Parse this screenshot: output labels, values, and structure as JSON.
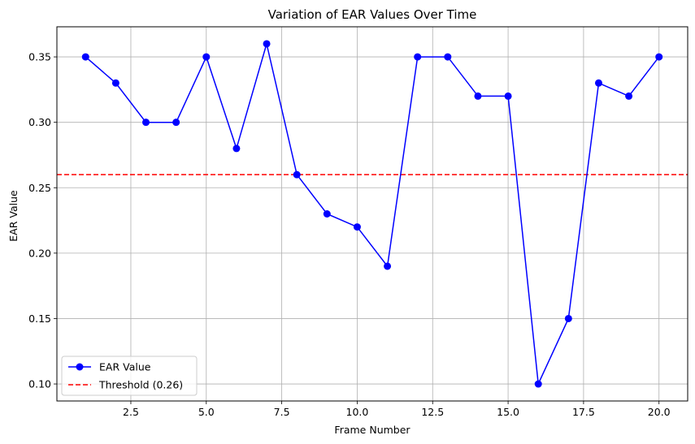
{
  "chart_data": {
    "type": "line",
    "title": "Variation of EAR Values Over Time",
    "xlabel": "Frame Number",
    "ylabel": "EAR Value",
    "xlim": [
      0.05,
      20.95
    ],
    "ylim": [
      0.087,
      0.373
    ],
    "xticks": [
      2.5,
      5.0,
      7.5,
      10.0,
      12.5,
      15.0,
      17.5,
      20.0
    ],
    "xtick_labels": [
      "2.5",
      "5.0",
      "7.5",
      "10.0",
      "12.5",
      "15.0",
      "17.5",
      "20.0"
    ],
    "yticks": [
      0.1,
      0.15,
      0.2,
      0.25,
      0.3,
      0.35
    ],
    "ytick_labels": [
      "0.10",
      "0.15",
      "0.20",
      "0.25",
      "0.30",
      "0.35"
    ],
    "grid": true,
    "legend_position": "lower-left",
    "series": [
      {
        "name": "EAR Value",
        "color": "#0000ff",
        "marker": "circle",
        "x": [
          1,
          2,
          3,
          4,
          5,
          6,
          7,
          8,
          9,
          10,
          11,
          12,
          13,
          14,
          15,
          16,
          17,
          18,
          19,
          20
        ],
        "values": [
          0.35,
          0.33,
          0.3,
          0.3,
          0.35,
          0.28,
          0.36,
          0.26,
          0.23,
          0.22,
          0.19,
          0.35,
          0.35,
          0.32,
          0.32,
          0.1,
          0.15,
          0.33,
          0.32,
          0.35
        ]
      }
    ],
    "threshold": {
      "name": "Threshold (0.26)",
      "value": 0.26,
      "color": "#ff0000",
      "style": "dashed"
    }
  }
}
